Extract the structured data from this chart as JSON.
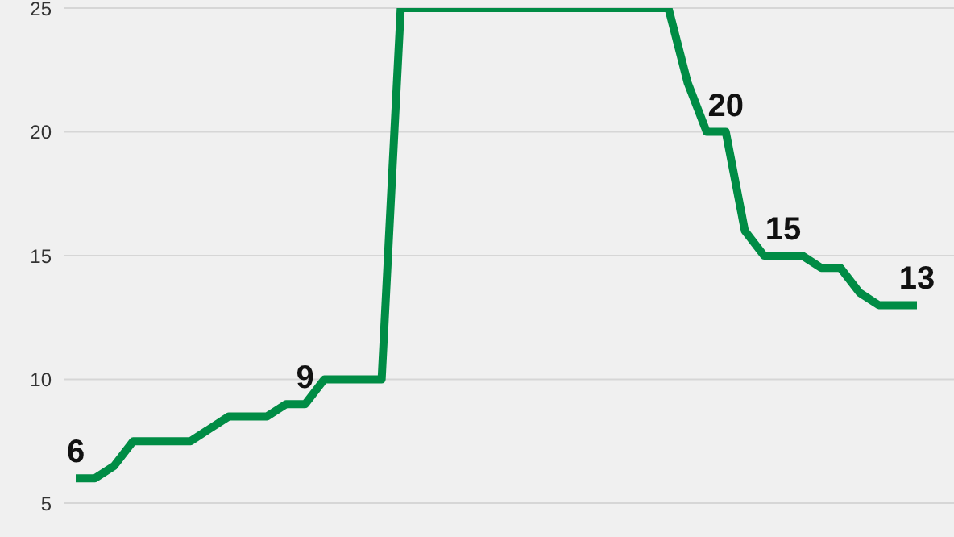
{
  "chart_data": {
    "type": "line",
    "categories": [
      null,
      null,
      null,
      null,
      null,
      null,
      null,
      null,
      null,
      null,
      null,
      null,
      null,
      null,
      null,
      null,
      null,
      null,
      null,
      null,
      null,
      null,
      null,
      null,
      null,
      null,
      null,
      null,
      null,
      null,
      null,
      null,
      null,
      null,
      null,
      null,
      null,
      null,
      null,
      null,
      null,
      null,
      null,
      null,
      null
    ],
    "series": [
      {
        "color": "#008c45",
        "values": [
          6,
          6,
          6.5,
          7.5,
          7.5,
          7.5,
          7.5,
          8,
          8.5,
          8.5,
          8.5,
          9,
          9,
          10,
          10,
          10,
          10,
          25,
          25,
          25,
          25,
          25,
          25,
          25,
          25,
          25,
          25,
          25,
          25,
          25,
          25,
          25,
          22,
          20,
          20,
          16,
          15,
          15,
          15,
          14.5,
          14.5,
          13.5,
          13,
          13,
          13
        ],
        "value_labels": [
          "6",
          null,
          null,
          null,
          null,
          null,
          null,
          null,
          null,
          null,
          null,
          null,
          "9",
          null,
          null,
          null,
          null,
          null,
          null,
          null,
          null,
          null,
          null,
          null,
          null,
          null,
          null,
          null,
          null,
          null,
          null,
          null,
          null,
          null,
          "20",
          null,
          null,
          "15",
          null,
          null,
          null,
          null,
          null,
          null,
          "13"
        ]
      }
    ],
    "ylim": [
      5,
      25
    ],
    "yticks": [
      5,
      10,
      15,
      20,
      25
    ],
    "grid": "y",
    "legend": false,
    "marker": "none",
    "line_style": "solid"
  }
}
